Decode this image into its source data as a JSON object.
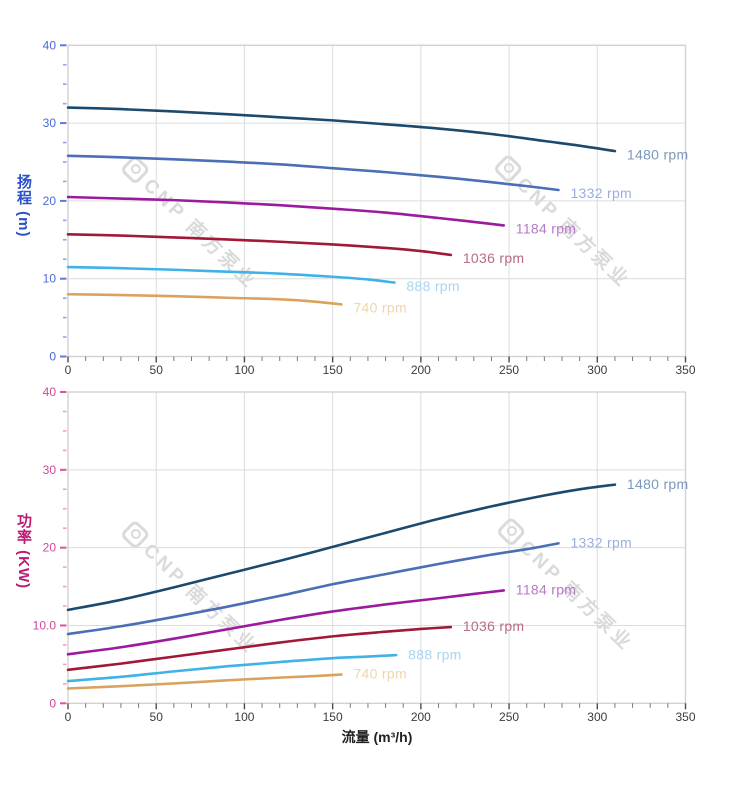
{
  "watermark": {
    "text": "CNP 南方泵业",
    "color": "#dadada"
  },
  "chart_data": [
    {
      "type": "line",
      "title": "",
      "xlabel": "",
      "ylabel": "扬程 (m)",
      "xlim": [
        0,
        350
      ],
      "ylim": [
        0,
        40
      ],
      "xticks": [
        0,
        50,
        100,
        150,
        200,
        250,
        300,
        350
      ],
      "xtick_labels": [
        "0",
        "50",
        "100",
        "150",
        "200",
        "250",
        "300",
        "350"
      ],
      "yticks": [
        0,
        10,
        20,
        30,
        40
      ],
      "ytick_labels": [
        "0",
        "10",
        "20",
        "30",
        "40"
      ],
      "x_minor": 10,
      "y_minor": 2.5,
      "grid": true,
      "grid_color": "#dcdcdc",
      "border_color": "#d2d2d2",
      "xtick_color": "#3c3c3c",
      "ytick_color": "#5b7bd9",
      "ytick_minor_color": "#8fa4e8",
      "ytick_label_color": "#4a69d9",
      "axis_title_color": "#2b50c8",
      "series": [
        {
          "name": "1480 rpm",
          "color": "#1c4a6e",
          "label_color": "#7b97bb",
          "points": [
            [
              0,
              32.0
            ],
            [
              30,
              31.8
            ],
            [
              60,
              31.5
            ],
            [
              90,
              31.15
            ],
            [
              120,
              30.75
            ],
            [
              150,
              30.35
            ],
            [
              180,
              29.85
            ],
            [
              210,
              29.3
            ],
            [
              240,
              28.6
            ],
            [
              270,
              27.7
            ],
            [
              290,
              27.1
            ],
            [
              310,
              26.4
            ]
          ]
        },
        {
          "name": "1332 rpm",
          "color": "#4a6fb5",
          "label_color": "#9aaede",
          "points": [
            [
              0,
              25.8
            ],
            [
              30,
              25.6
            ],
            [
              60,
              25.35
            ],
            [
              90,
              25.05
            ],
            [
              120,
              24.7
            ],
            [
              150,
              24.2
            ],
            [
              180,
              23.7
            ],
            [
              210,
              23.1
            ],
            [
              240,
              22.4
            ],
            [
              260,
              21.9
            ],
            [
              278,
              21.4
            ]
          ]
        },
        {
          "name": "1184 rpm",
          "color": "#9a1b9e",
          "label_color": "#b579c8",
          "points": [
            [
              0,
              20.5
            ],
            [
              30,
              20.3
            ],
            [
              60,
              20.1
            ],
            [
              90,
              19.8
            ],
            [
              120,
              19.45
            ],
            [
              150,
              19.0
            ],
            [
              180,
              18.5
            ],
            [
              210,
              17.8
            ],
            [
              230,
              17.3
            ],
            [
              247,
              16.85
            ]
          ]
        },
        {
          "name": "1036 rpm",
          "color": "#a01936",
          "label_color": "#b56b84",
          "points": [
            [
              0,
              15.7
            ],
            [
              30,
              15.55
            ],
            [
              60,
              15.3
            ],
            [
              90,
              15.05
            ],
            [
              120,
              14.75
            ],
            [
              150,
              14.4
            ],
            [
              180,
              13.95
            ],
            [
              200,
              13.55
            ],
            [
              217,
              13.05
            ]
          ]
        },
        {
          "name": "888 rpm",
          "color": "#3fb2e8",
          "label_color": "#a7d5f2",
          "points": [
            [
              0,
              11.5
            ],
            [
              30,
              11.35
            ],
            [
              60,
              11.15
            ],
            [
              90,
              10.9
            ],
            [
              120,
              10.65
            ],
            [
              150,
              10.25
            ],
            [
              170,
              9.9
            ],
            [
              185,
              9.5
            ]
          ]
        },
        {
          "name": "740 rpm",
          "color": "#d9a35e",
          "label_color": "#edd6ab",
          "points": [
            [
              0,
              8.0
            ],
            [
              30,
              7.9
            ],
            [
              60,
              7.75
            ],
            [
              90,
              7.55
            ],
            [
              120,
              7.35
            ],
            [
              140,
              7.05
            ],
            [
              155,
              6.7
            ]
          ]
        }
      ]
    },
    {
      "type": "line",
      "title": "",
      "xlabel": "流量 (m³/h)",
      "ylabel": "功率 (KW)",
      "xlim": [
        0,
        350
      ],
      "ylim": [
        0,
        40
      ],
      "xticks": [
        0,
        50,
        100,
        150,
        200,
        250,
        300,
        350
      ],
      "xtick_labels": [
        "0",
        "50",
        "100",
        "150",
        "200",
        "250",
        "300",
        "350"
      ],
      "yticks": [
        0,
        10,
        20,
        30,
        40
      ],
      "ytick_labels": [
        "0",
        "10.0",
        "20",
        "30",
        "40"
      ],
      "x_minor": 10,
      "y_minor": 2.5,
      "grid": true,
      "grid_color": "#dcdcdc",
      "border_color": "#d2d2d2",
      "xtick_color": "#3c3c3c",
      "ytick_color": "#e0519e",
      "ytick_minor_color": "#efa0cc",
      "ytick_label_color": "#cf4899",
      "axis_title_color": "#bd1a74",
      "series": [
        {
          "name": "1480 rpm",
          "color": "#1c4a6e",
          "label_color": "#7b97bb",
          "points": [
            [
              0,
              12.0
            ],
            [
              30,
              13.3
            ],
            [
              60,
              14.9
            ],
            [
              90,
              16.6
            ],
            [
              120,
              18.3
            ],
            [
              150,
              20.1
            ],
            [
              180,
              21.9
            ],
            [
              210,
              23.7
            ],
            [
              240,
              25.3
            ],
            [
              270,
              26.7
            ],
            [
              290,
              27.5
            ],
            [
              310,
              28.1
            ]
          ]
        },
        {
          "name": "1332 rpm",
          "color": "#4a6fb5",
          "label_color": "#9aaede",
          "points": [
            [
              0,
              8.9
            ],
            [
              30,
              9.9
            ],
            [
              60,
              11.1
            ],
            [
              90,
              12.4
            ],
            [
              120,
              13.8
            ],
            [
              150,
              15.3
            ],
            [
              180,
              16.6
            ],
            [
              210,
              17.9
            ],
            [
              240,
              19.1
            ],
            [
              260,
              19.8
            ],
            [
              278,
              20.55
            ]
          ]
        },
        {
          "name": "1184 rpm",
          "color": "#9a1b9e",
          "label_color": "#b579c8",
          "points": [
            [
              0,
              6.3
            ],
            [
              30,
              7.2
            ],
            [
              60,
              8.3
            ],
            [
              90,
              9.5
            ],
            [
              120,
              10.7
            ],
            [
              150,
              11.8
            ],
            [
              180,
              12.7
            ],
            [
              210,
              13.5
            ],
            [
              230,
              14.05
            ],
            [
              247,
              14.5
            ]
          ]
        },
        {
          "name": "1036 rpm",
          "color": "#a01936",
          "label_color": "#b56b84",
          "points": [
            [
              0,
              4.3
            ],
            [
              30,
              5.1
            ],
            [
              60,
              6.0
            ],
            [
              90,
              6.9
            ],
            [
              120,
              7.8
            ],
            [
              150,
              8.6
            ],
            [
              180,
              9.2
            ],
            [
              200,
              9.55
            ],
            [
              217,
              9.8
            ]
          ]
        },
        {
          "name": "888 rpm",
          "color": "#3fb2e8",
          "label_color": "#a7d5f2",
          "points": [
            [
              0,
              2.85
            ],
            [
              30,
              3.4
            ],
            [
              60,
              4.1
            ],
            [
              90,
              4.75
            ],
            [
              120,
              5.3
            ],
            [
              150,
              5.8
            ],
            [
              170,
              6.0
            ],
            [
              186,
              6.2
            ]
          ]
        },
        {
          "name": "740 rpm",
          "color": "#d9a35e",
          "label_color": "#edd6ab",
          "points": [
            [
              0,
              1.9
            ],
            [
              30,
              2.2
            ],
            [
              60,
              2.55
            ],
            [
              90,
              2.95
            ],
            [
              120,
              3.3
            ],
            [
              140,
              3.5
            ],
            [
              155,
              3.7
            ]
          ]
        }
      ]
    }
  ]
}
